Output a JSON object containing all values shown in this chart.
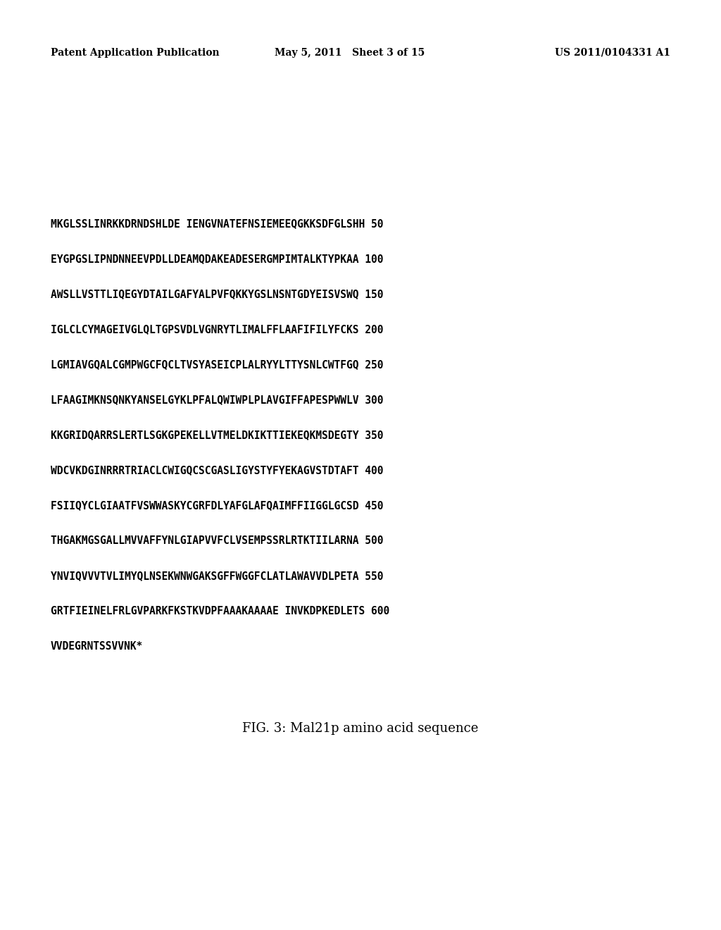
{
  "header_left": "Patent Application Publication",
  "header_center": "May 5, 2011   Sheet 3 of 15",
  "header_right": "US 2011/0104331 A1",
  "sequence_lines": [
    {
      "text": "MKGLSSLINRKKDRNDSHLDE IENGVNATEFNSIEMEEQGKKSDFGLSHH",
      "number": "50"
    },
    {
      "text": "EYGPGSLIPNDNNEEVPDLLDEAMQDAKEADESERGMPIMTALKTYPKAA",
      "number": "100"
    },
    {
      "text": "AWSLLVSTTLIQEGYDTAILGAFYALPVFQKKYGSLNSNTGDYEISVSWQ",
      "number": "150"
    },
    {
      "text": "IGLCLCYMAGEIVGLQLTGPSVDLVGNRYTLIMALFFLAAFIFILYFCKS",
      "number": "200"
    },
    {
      "text": "LGMIAVGQALCGMPWGCFQCLTVSYASEICPLALRYYLTTYSNLCWTFGQ",
      "number": "250"
    },
    {
      "text": "LFAAGIMKNSQNKYANSELGYKLPFALQWIWPLPLAVGIFFAPESPWWLV",
      "number": "300"
    },
    {
      "text": "KKGRIDQARRSLERTLSGKGPEKELLVTMELDKIKTTIEKEQKMSDEGTY",
      "number": "350"
    },
    {
      "text": "WDCVKDGINRRRTRIACLCWIGQCSCGASLIGYSTYFYEKAGVSTDTAFT",
      "number": "400"
    },
    {
      "text": "FSIIQYCLGIAATFVSWWASKYCGRFDLYAFGLAFQAIMFFIIGGLGCSD",
      "number": "450"
    },
    {
      "text": "THGAKMGSGALLMVVAFFYNLGIAPVVFCLVSEMPSSRLRTKTIILARNA",
      "number": "500"
    },
    {
      "text": "YNVIQVVVTVLIMYQLNSEKWNWGAKSGFFWGGFCLATLAWAVVDLPETA",
      "number": "550"
    },
    {
      "text": "GRTFIEINELFRLGVPARKFKSTKVDPFAAAKAAAAE INVKDPKEDLETS",
      "number": "600"
    },
    {
      "text": "VVDEGRNTSSVVNK*",
      "number": ""
    }
  ],
  "caption": "FIG. 3: Mal21p amino acid sequence",
  "background_color": "#ffffff",
  "text_color": "#000000",
  "header_fontsize": 10,
  "sequence_fontsize": 10.5,
  "caption_fontsize": 13
}
